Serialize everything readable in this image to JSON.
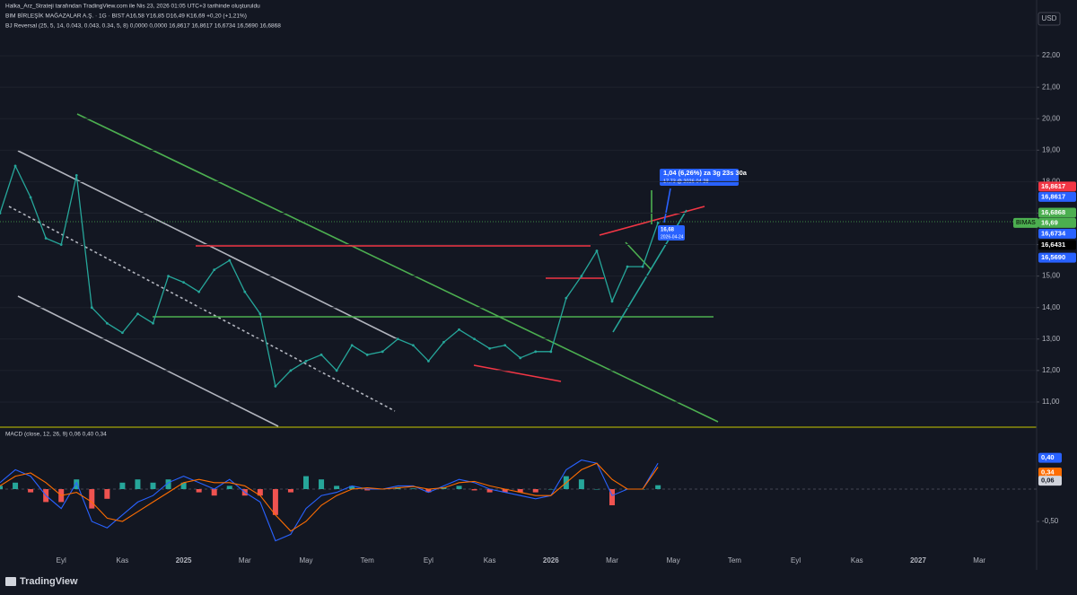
{
  "page": {
    "created_by": "Halka_Arz_Strateji tarafından TradingView.com ile Nis 23, 2026 01:05 UTC+3 tarihinde oluşturuldu",
    "footer": "TradingView"
  },
  "chart_data": [
    {
      "type": "line",
      "symbol": "BIM BİRLEŞİK MAĞAZALAR A.Ş. · 1G · BIST   A16,58  Y16,85  D16,49  K16,69  +0,20 (+1,21%)",
      "indicator": "BJ Reversal (25, 5, 14, 0.043, 0.043, 0.34, 5, 8)   0,0000  0,0000  16,8617  16,8617  16,6734  16,5690   16,6868",
      "currency": "USD",
      "categories": [
        null,
        null,
        null,
        null,
        "Eyl",
        null,
        null,
        null,
        "Kas",
        null,
        null,
        null,
        "2025",
        null,
        null,
        null,
        "Mar",
        null,
        null,
        null,
        "May",
        null,
        null,
        null,
        "Tem",
        null,
        null,
        null,
        "Eyl",
        null,
        null,
        null,
        "Kas",
        null,
        null,
        null,
        "2026",
        null,
        null,
        null,
        "Mar",
        null,
        null,
        null,
        "May",
        null,
        null,
        null,
        "Tem",
        null,
        null,
        null,
        "Eyl",
        null,
        null,
        null,
        "Kas",
        null,
        null,
        null,
        "2027",
        null,
        null,
        null,
        "Mar",
        null,
        null,
        null
      ],
      "values": [
        17.0,
        18.5,
        17.5,
        16.2,
        16.0,
        18.2,
        14.0,
        13.5,
        13.2,
        13.8,
        13.5,
        15.0,
        14.8,
        14.5,
        15.2,
        15.5,
        14.5,
        13.8,
        11.5,
        12.0,
        12.3,
        12.5,
        12.0,
        12.8,
        12.5,
        12.6,
        13.0,
        12.8,
        12.3,
        12.9,
        13.3,
        13.0,
        12.7,
        12.8,
        12.4,
        12.6,
        12.6,
        14.3,
        15.0,
        15.8,
        14.2,
        15.3,
        15.3,
        16.69,
        null,
        null,
        null,
        null,
        null,
        null,
        null,
        null,
        null,
        null,
        null,
        null,
        null,
        null,
        null,
        null,
        null,
        null,
        null,
        null,
        null,
        null,
        null,
        null
      ],
      "color": "#26a69a",
      "ylim": [
        10.2,
        23.77
      ],
      "yticks": [
        {
          "value": 11,
          "label": "11,00"
        },
        {
          "value": 12,
          "label": "12,00"
        },
        {
          "value": 13,
          "label": "13,00"
        },
        {
          "value": 14,
          "label": "14,00"
        },
        {
          "value": 15,
          "label": "15,00"
        },
        {
          "value": 16,
          "label": "16,00"
        },
        {
          "value": 17,
          "label": "17,00"
        },
        {
          "value": 18,
          "label": "18,00"
        },
        {
          "value": 19,
          "label": "19,00"
        },
        {
          "value": 20,
          "label": "20,00"
        },
        {
          "value": 21,
          "label": "21,00"
        },
        {
          "value": 22,
          "label": "22,00"
        }
      ],
      "grid": true,
      "symbol_tag": "BIMAS",
      "price_labels": [
        {
          "value": 16.8617,
          "label": "16,8617",
          "color": "#f23645"
        },
        {
          "value": 16.8617,
          "label": "16,8617",
          "color": "#2962ff"
        },
        {
          "value": 16.6868,
          "label": "16,6868",
          "color": "#4caf50"
        },
        {
          "value": 16.69,
          "label": "16,69",
          "color": "#4caf50"
        },
        {
          "value": 16.6734,
          "label": "16,6734",
          "color": "#2962ff"
        },
        {
          "value": 16.6431,
          "label": "16,6431",
          "color": "#000000"
        },
        {
          "value": 16.569,
          "label": "16,5690",
          "color": "#2962ff"
        }
      ],
      "tooltip": {
        "line1": "1,04 (6,26%) za 3g 23s 30a",
        "line2": "17,73 @ 2026-04-28"
      },
      "marker": {
        "price": "16,68",
        "date": "2026-04-24"
      }
    },
    {
      "type": "macd",
      "title": "MACD (close, 12, 26, 9)   0,06  0,40  0,34",
      "ylim": [
        -0.93,
        0.93
      ],
      "yticks": [
        {
          "value": -0.5,
          "label": "-0,50"
        }
      ],
      "series": [
        {
          "color": "#26a69a",
          "kind": "bar",
          "values": [
            0.05,
            0.1,
            -0.05,
            -0.2,
            -0.2,
            0.15,
            -0.3,
            -0.15,
            0.1,
            0.15,
            0.1,
            0.15,
            0.1,
            -0.05,
            -0.1,
            0.05,
            -0.1,
            -0.1,
            -0.4,
            -0.05,
            0.2,
            0.15,
            0.05,
            0.05,
            -0.02,
            0,
            0.03,
            0.01,
            -0.05,
            0.03,
            0.05,
            -0.02,
            -0.05,
            -0.05,
            -0.05,
            -0.05,
            0,
            0.2,
            0.15,
            0,
            -0.25,
            0,
            0,
            0.06
          ]
        },
        {
          "color": "#2962ff",
          "kind": "line",
          "values": [
            0.1,
            0.3,
            0.2,
            -0.1,
            -0.3,
            0.1,
            -0.5,
            -0.6,
            -0.4,
            -0.2,
            -0.1,
            0.1,
            0.2,
            0.1,
            0,
            0.15,
            -0.05,
            -0.2,
            -0.8,
            -0.7,
            -0.3,
            -0.1,
            -0.05,
            0.05,
            0,
            0,
            0.05,
            0.05,
            -0.05,
            0.05,
            0.15,
            0.1,
            0,
            -0.05,
            -0.1,
            -0.15,
            -0.1,
            0.3,
            0.45,
            0.4,
            -0.1,
            0,
            0,
            0.4
          ]
        },
        {
          "color": "#ff6d00",
          "kind": "line",
          "values": [
            0.05,
            0.2,
            0.25,
            0.1,
            -0.1,
            -0.05,
            -0.2,
            -0.45,
            -0.5,
            -0.35,
            -0.2,
            -0.05,
            0.1,
            0.15,
            0.1,
            0.1,
            0.05,
            -0.1,
            -0.4,
            -0.65,
            -0.5,
            -0.25,
            -0.1,
            0,
            0.02,
            0,
            0.02,
            0.04,
            0,
            0.02,
            0.1,
            0.12,
            0.05,
            0,
            -0.05,
            -0.1,
            -0.1,
            0.1,
            0.3,
            0.4,
            0.15,
            0,
            0,
            0.34
          ]
        }
      ],
      "value_badges": [
        {
          "value": 0.4,
          "label": "0,40",
          "color": "#2962ff"
        },
        {
          "value": 0.34,
          "label": "0,34",
          "color": "#ff6d00"
        },
        {
          "value": 0.06,
          "label": "0,06",
          "color": "#d1d4dc"
        }
      ]
    }
  ]
}
